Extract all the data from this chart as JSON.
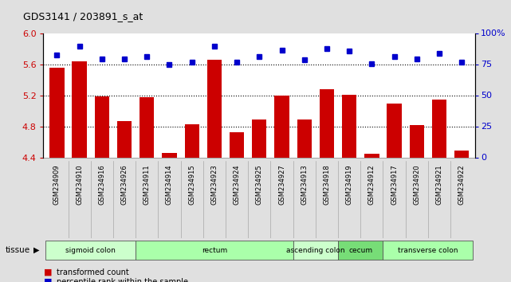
{
  "title": "GDS3141 / 203891_s_at",
  "samples": [
    "GSM234909",
    "GSM234910",
    "GSM234916",
    "GSM234926",
    "GSM234911",
    "GSM234914",
    "GSM234915",
    "GSM234923",
    "GSM234924",
    "GSM234925",
    "GSM234927",
    "GSM234913",
    "GSM234918",
    "GSM234919",
    "GSM234912",
    "GSM234917",
    "GSM234920",
    "GSM234921",
    "GSM234922"
  ],
  "bar_values": [
    5.56,
    5.65,
    5.19,
    4.87,
    5.18,
    4.46,
    4.83,
    5.67,
    4.73,
    4.9,
    5.2,
    4.9,
    5.29,
    5.21,
    4.45,
    5.1,
    4.82,
    5.15,
    4.5
  ],
  "dot_values": [
    83,
    90,
    80,
    80,
    82,
    75,
    77,
    90,
    77,
    82,
    87,
    79,
    88,
    86,
    76,
    82,
    80,
    84,
    77
  ],
  "bar_color": "#cc0000",
  "dot_color": "#0000cc",
  "ylim_left": [
    4.4,
    6.0
  ],
  "ylim_right": [
    0,
    100
  ],
  "yticks_left": [
    4.4,
    4.8,
    5.2,
    5.6,
    6.0
  ],
  "yticks_right": [
    0,
    25,
    50,
    75,
    100
  ],
  "grid_values": [
    5.6,
    5.2,
    4.8
  ],
  "tissue_groups": [
    {
      "label": "sigmoid colon",
      "start": 0,
      "end": 4,
      "color": "#ccffcc"
    },
    {
      "label": "rectum",
      "start": 4,
      "end": 11,
      "color": "#aaffaa"
    },
    {
      "label": "ascending colon",
      "start": 11,
      "end": 13,
      "color": "#ccffcc"
    },
    {
      "label": "cecum",
      "start": 13,
      "end": 15,
      "color": "#77dd77"
    },
    {
      "label": "transverse colon",
      "start": 15,
      "end": 19,
      "color": "#aaffaa"
    }
  ],
  "legend_bar_label": "transformed count",
  "legend_dot_label": "percentile rank within the sample",
  "tissue_label": "tissue",
  "background_color": "#e0e0e0",
  "plot_bg_color": "#ffffff",
  "xticklabel_bg": "#cccccc"
}
